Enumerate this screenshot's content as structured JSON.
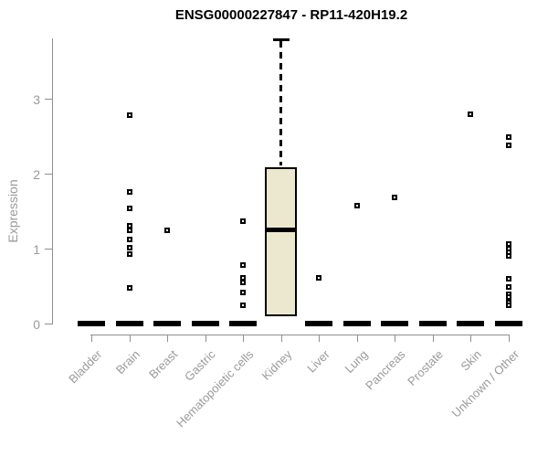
{
  "chart_data": {
    "type": "boxplot",
    "title": "ENSG00000227847 - RP11-420H19.2",
    "ylabel": "Expression",
    "xlabel": "",
    "yticks": [
      0,
      1,
      2,
      3
    ],
    "ylim": [
      0,
      3.85
    ],
    "grid": false,
    "legend": "none",
    "categories": [
      "Bladder",
      "Brain",
      "Breast",
      "Gastric",
      "Hematopoietic cells",
      "Kidney",
      "Liver",
      "Lung",
      "Pancreas",
      "Prostate",
      "Skin",
      "Unknown / Other"
    ],
    "boxes": [
      {
        "category": "Bladder",
        "median": 0,
        "q1": 0,
        "q3": 0,
        "whisker_low": 0,
        "whisker_high": 0,
        "outliers": []
      },
      {
        "category": "Brain",
        "median": 0,
        "q1": 0,
        "q3": 0,
        "whisker_low": 0,
        "whisker_high": 0,
        "outliers": [
          2.78,
          1.76,
          1.54,
          1.3,
          1.24,
          1.12,
          1.01,
          0.93,
          0.47
        ]
      },
      {
        "category": "Breast",
        "median": 0,
        "q1": 0,
        "q3": 0,
        "whisker_low": 0,
        "whisker_high": 0,
        "outliers": [
          1.25
        ]
      },
      {
        "category": "Gastric",
        "median": 0,
        "q1": 0,
        "q3": 0,
        "whisker_low": 0,
        "whisker_high": 0,
        "outliers": []
      },
      {
        "category": "Hematopoietic cells",
        "median": 0,
        "q1": 0,
        "q3": 0,
        "whisker_low": 0,
        "whisker_high": 0,
        "outliers": [
          1.37,
          0.78,
          0.61,
          0.55,
          0.42,
          0.24
        ]
      },
      {
        "category": "Kidney",
        "median": 1.25,
        "q1": 0.1,
        "q3": 2.09,
        "whisker_low": 0.1,
        "whisker_high": 3.8,
        "outliers": []
      },
      {
        "category": "Liver",
        "median": 0,
        "q1": 0,
        "q3": 0,
        "whisker_low": 0,
        "whisker_high": 0,
        "outliers": [
          0.61
        ]
      },
      {
        "category": "Lung",
        "median": 0,
        "q1": 0,
        "q3": 0,
        "whisker_low": 0,
        "whisker_high": 0,
        "outliers": [
          1.57
        ]
      },
      {
        "category": "Pancreas",
        "median": 0,
        "q1": 0,
        "q3": 0,
        "whisker_low": 0,
        "whisker_high": 0,
        "outliers": [
          1.68
        ]
      },
      {
        "category": "Prostate",
        "median": 0,
        "q1": 0,
        "q3": 0,
        "whisker_low": 0,
        "whisker_high": 0,
        "outliers": []
      },
      {
        "category": "Skin",
        "median": 0,
        "q1": 0,
        "q3": 0,
        "whisker_low": 0,
        "whisker_high": 0,
        "outliers": [
          2.79
        ]
      },
      {
        "category": "Unknown / Other",
        "median": 0,
        "q1": 0,
        "q3": 0,
        "whisker_low": 0,
        "whisker_high": 0,
        "outliers": [
          2.49,
          2.38,
          1.06,
          1.0,
          0.95,
          0.9,
          0.6,
          0.49,
          0.39,
          0.35,
          0.28,
          0.24
        ]
      }
    ],
    "colors": {
      "box_fill": "#ece8cf",
      "box_border": "#000000",
      "median": "#000000",
      "outlier_fill": "#ffffff",
      "outlier_border": "#000000",
      "axis": "#8f8f8f",
      "tick_labels": "#9a9a9a",
      "title": "#000000",
      "background": "#ffffff"
    }
  }
}
